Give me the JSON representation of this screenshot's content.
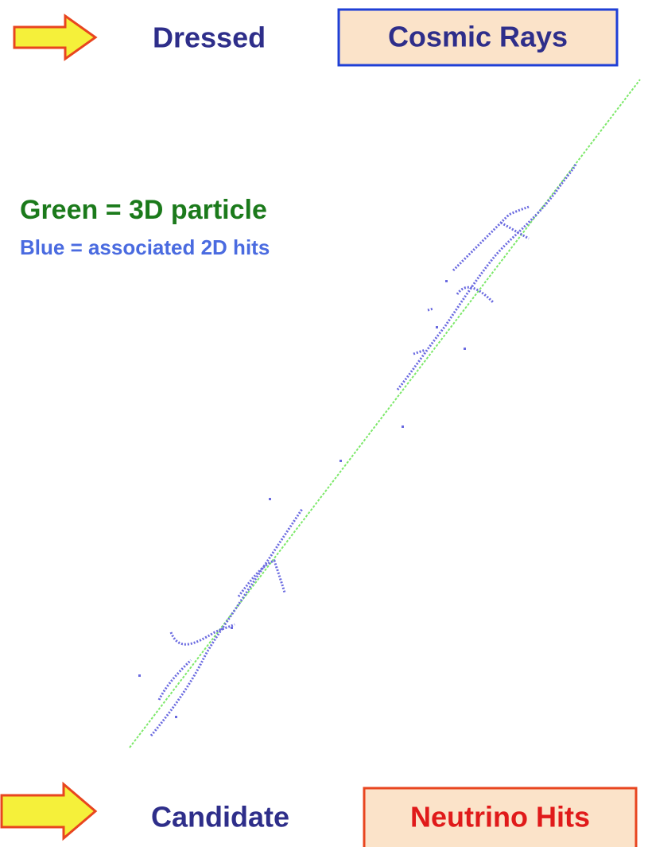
{
  "header": {
    "label": "Dressed",
    "box": "Cosmic Rays"
  },
  "legend": {
    "green": "Green = 3D particle",
    "blue": "Blue = associated 2D hits"
  },
  "footer": {
    "label": "Candidate",
    "box": "Neutrino Hits"
  }
}
